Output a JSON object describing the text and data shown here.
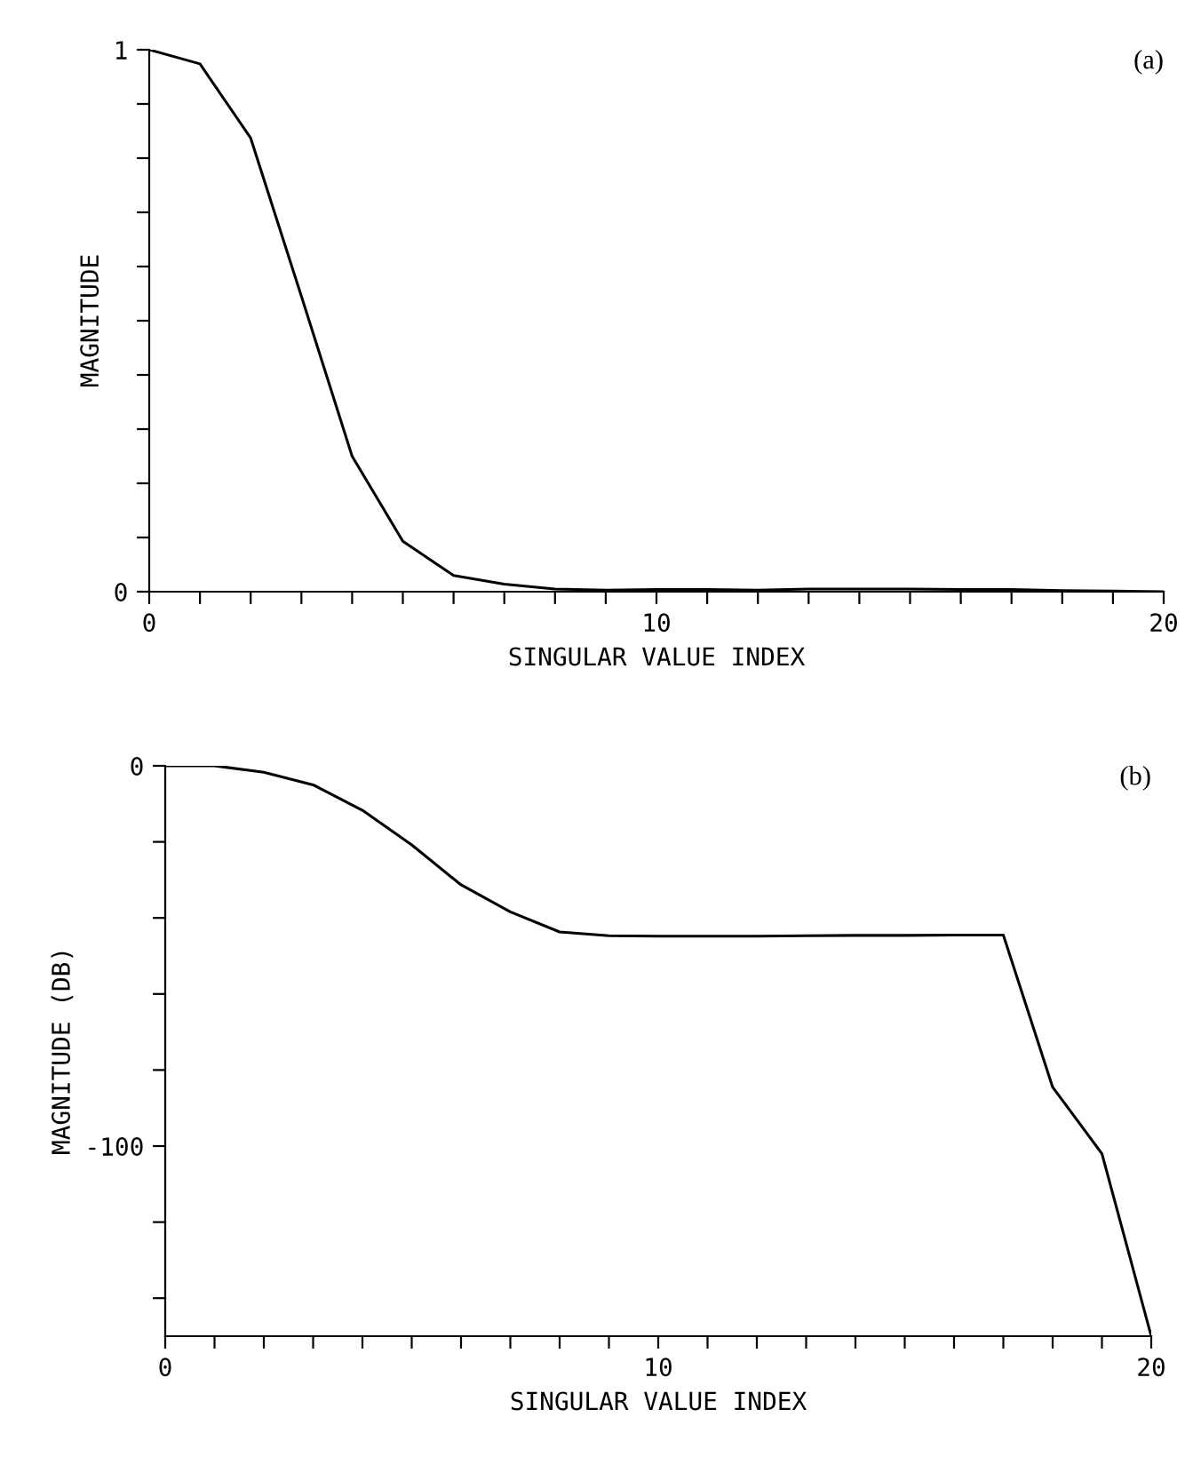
{
  "chart_data": [
    {
      "type": "line",
      "xlabel": "SINGULAR VALUE INDEX",
      "ylabel": "MAGNITUDE",
      "annotations": [
        "(a)"
      ],
      "x": [
        0,
        1,
        2,
        3,
        4,
        5,
        6,
        7,
        8,
        9,
        10,
        11,
        12,
        13,
        14,
        15,
        16,
        17,
        18,
        19,
        20
      ],
      "series": [
        {
          "color": "#000000",
          "values": [
            1,
            0.974,
            0.837,
            0.545,
            0.25,
            0.093,
            0.03,
            0.014,
            0.005,
            0.003,
            0.004,
            0.004,
            0.003,
            0.005,
            0.005,
            0.005,
            0.004,
            0.004,
            0.002,
            0.001,
            0
          ]
        }
      ],
      "xlim": [
        0,
        20
      ],
      "ylim": [
        0,
        1
      ],
      "xticks": [
        0,
        {
          "value": 1,
          "label": null
        },
        {
          "value": 2,
          "label": null
        },
        {
          "value": 3,
          "label": null
        },
        {
          "value": 4,
          "label": null
        },
        {
          "value": 5,
          "label": null
        },
        {
          "value": 6,
          "label": null
        },
        {
          "value": 7,
          "label": null
        },
        {
          "value": 8,
          "label": null
        },
        {
          "value": 9,
          "label": null
        },
        10,
        {
          "value": 11,
          "label": null
        },
        {
          "value": 12,
          "label": null
        },
        {
          "value": 13,
          "label": null
        },
        {
          "value": 14,
          "label": null
        },
        {
          "value": 15,
          "label": null
        },
        {
          "value": 16,
          "label": null
        },
        {
          "value": 17,
          "label": null
        },
        {
          "value": 18,
          "label": null
        },
        {
          "value": 19,
          "label": null
        },
        20
      ],
      "yticks": [
        0,
        {
          "value": 0.1,
          "label": null
        },
        {
          "value": 0.2,
          "label": null
        },
        {
          "value": 0.3,
          "label": null
        },
        {
          "value": 0.4,
          "label": null
        },
        {
          "value": 0.5,
          "label": null
        },
        {
          "value": 0.6,
          "label": null
        },
        {
          "value": 0.7,
          "label": null
        },
        {
          "value": 0.8,
          "label": null
        },
        {
          "value": 0.9,
          "label": null
        },
        1
      ],
      "grid": false,
      "legend": false,
      "marker": "none",
      "line_style": "solid"
    },
    {
      "type": "line",
      "xlabel": "SINGULAR VALUE INDEX",
      "ylabel": "MAGNITUDE (DB)",
      "annotations": [
        "(b)"
      ],
      "x": [
        0,
        1,
        2,
        3,
        4,
        5,
        6,
        7,
        8,
        9,
        10,
        11,
        12,
        13,
        14,
        15,
        16,
        17,
        18,
        19,
        20
      ],
      "series": [
        {
          "color": "#000000",
          "values": [
            0,
            0,
            -1.7,
            -5,
            -11.7,
            -20.8,
            -31.3,
            -38.4,
            -43.7,
            -44.7,
            -44.8,
            -44.8,
            -44.8,
            -44.7,
            -44.6,
            -44.6,
            -44.5,
            -44.5,
            -84.5,
            -102,
            -150
          ]
        }
      ],
      "xlim": [
        0,
        20
      ],
      "ylim": [
        -150,
        0
      ],
      "xticks": [
        0,
        {
          "value": 1,
          "label": null
        },
        {
          "value": 2,
          "label": null
        },
        {
          "value": 3,
          "label": null
        },
        {
          "value": 4,
          "label": null
        },
        {
          "value": 5,
          "label": null
        },
        {
          "value": 6,
          "label": null
        },
        {
          "value": 7,
          "label": null
        },
        {
          "value": 8,
          "label": null
        },
        {
          "value": 9,
          "label": null
        },
        10,
        {
          "value": 11,
          "label": null
        },
        {
          "value": 12,
          "label": null
        },
        {
          "value": 13,
          "label": null
        },
        {
          "value": 14,
          "label": null
        },
        {
          "value": 15,
          "label": null
        },
        {
          "value": 16,
          "label": null
        },
        {
          "value": 17,
          "label": null
        },
        {
          "value": 18,
          "label": null
        },
        {
          "value": 19,
          "label": null
        },
        20
      ],
      "yticks": [
        {
          "value": -140,
          "label": null
        },
        {
          "value": -120,
          "label": null
        },
        -100,
        {
          "value": -80,
          "label": null
        },
        {
          "value": -60,
          "label": null
        },
        {
          "value": -40,
          "label": null
        },
        {
          "value": -20,
          "label": null
        },
        0
      ],
      "grid": false,
      "legend": false,
      "marker": "none",
      "line_style": "solid"
    }
  ]
}
